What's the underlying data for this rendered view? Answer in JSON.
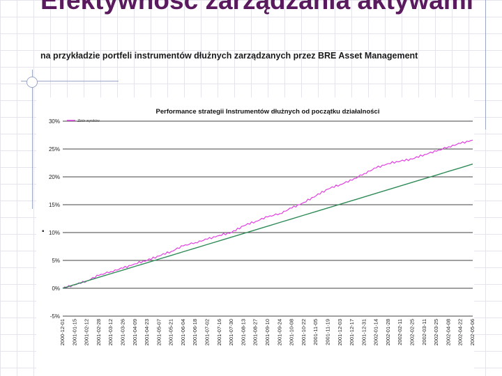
{
  "slide": {
    "title": "Efektywność zarządzania aktywami",
    "subtitle": "na przykładzie portfeli instrumentów dłużnych zarządzanych przez BRE Asset Management"
  },
  "colors": {
    "title": "#5a1a5e",
    "series_fund": "#e040e0",
    "series_benchmark": "#2e8b57",
    "gridline": "#000000"
  },
  "chart_data": {
    "type": "line",
    "title": "Performance strategii Instrumentów dłużnych od początku działalności",
    "ylim": [
      -5,
      30
    ],
    "yticks": [
      -5,
      0,
      5,
      10,
      15,
      20,
      25,
      30
    ],
    "ytick_labels": [
      "-5%",
      "0%",
      "5%",
      "10%",
      "15%",
      "20%",
      "25%",
      "30%"
    ],
    "legend_position": "top-left",
    "legend_label_text": "Zbiór wyników",
    "grid": "horizontal",
    "categories": [
      "2000-12-01",
      "2001-01-15",
      "2001-02-12",
      "2001-02-28",
      "2001-03-12",
      "2001-03-26",
      "2001-04-09",
      "2001-04-23",
      "2001-05-07",
      "2001-05-21",
      "2001-06-04",
      "2001-06-18",
      "2001-07-02",
      "2001-07-16",
      "2001-07-30",
      "2001-08-13",
      "2001-08-27",
      "2001-09-10",
      "2001-09-24",
      "2001-10-08",
      "2001-10-22",
      "2001-11-05",
      "2001-11-19",
      "2001-12-03",
      "2001-12-17",
      "2001-12-31",
      "2002-01-14",
      "2002-01-28",
      "2002-02-11",
      "2002-02-25",
      "2002-03-11",
      "2002-03-25",
      "2002-04-08",
      "2002-04-22",
      "2002-05-06"
    ],
    "series": [
      {
        "values": [
          0,
          0.6,
          1.3,
          2.3,
          3.0,
          3.6,
          4.4,
          5.0,
          5.8,
          6.6,
          7.6,
          8.2,
          8.8,
          9.5,
          10.0,
          11.2,
          12.0,
          12.8,
          13.4,
          14.4,
          15.4,
          16.6,
          17.8,
          18.6,
          19.4,
          20.6,
          21.6,
          22.4,
          22.8,
          23.2,
          24.0,
          24.6,
          25.4,
          26.0,
          26.6
        ]
      },
      {
        "values": [
          0,
          0.66,
          1.31,
          1.97,
          2.62,
          3.28,
          3.94,
          4.59,
          5.25,
          5.9,
          6.56,
          7.21,
          7.87,
          8.53,
          9.18,
          9.84,
          10.49,
          11.15,
          11.81,
          12.46,
          13.12,
          13.77,
          14.43,
          15.09,
          15.74,
          16.4,
          17.05,
          17.71,
          18.36,
          19.02,
          19.68,
          20.33,
          20.99,
          21.64,
          22.3
        ]
      }
    ]
  }
}
